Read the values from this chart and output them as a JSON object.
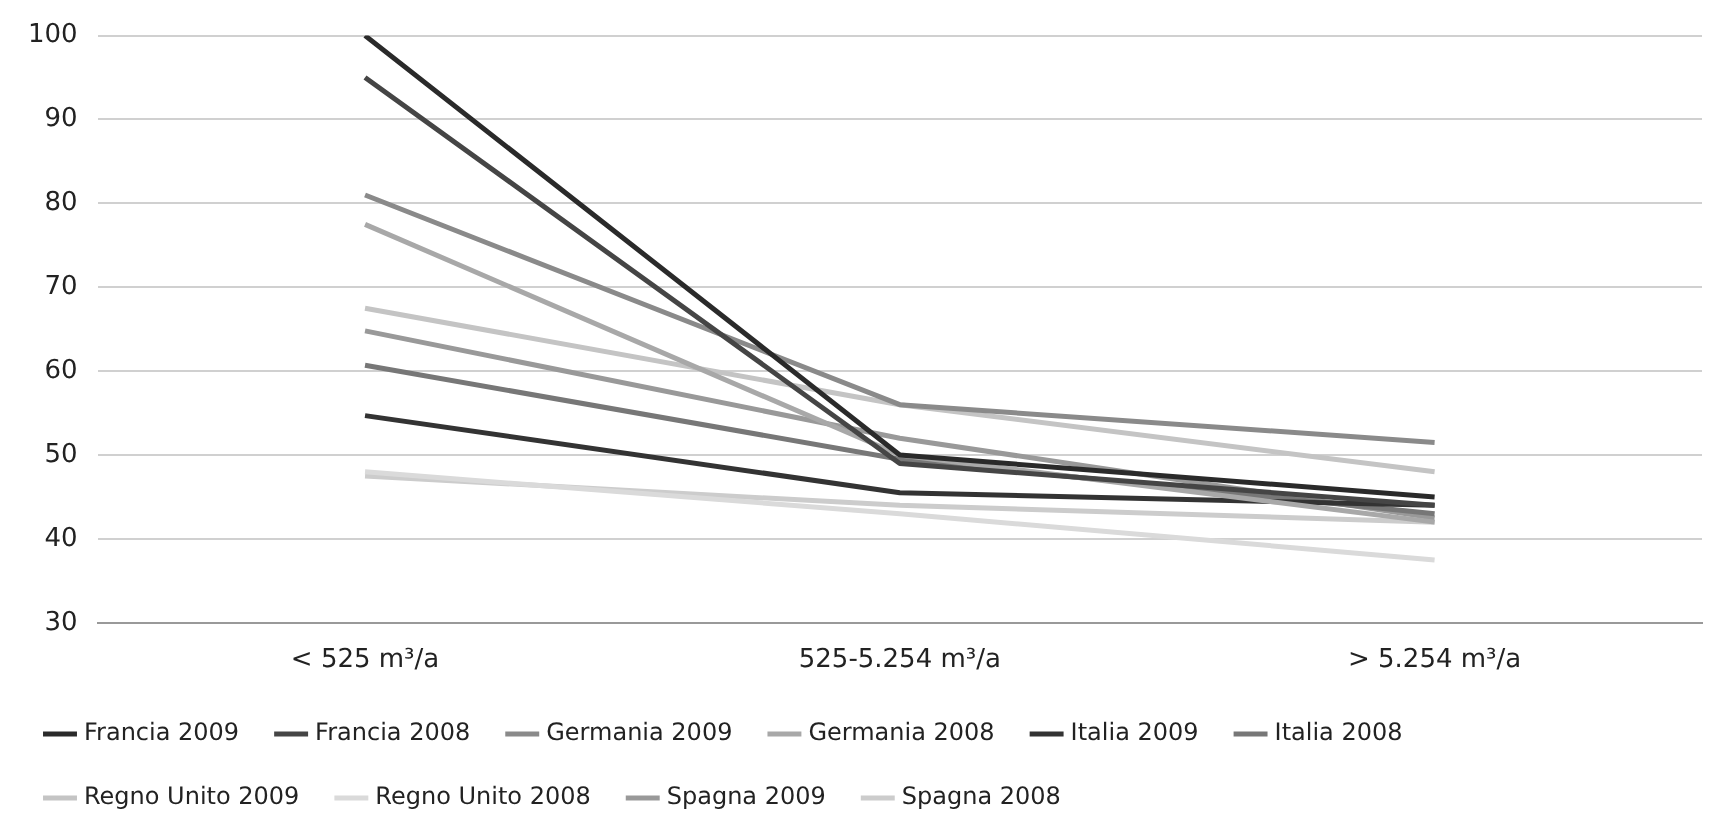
{
  "chart_data": {
    "type": "line",
    "categories": [
      "< 525 m³/a",
      "525-5.254 m³/a",
      "> 5.254 m³/a"
    ],
    "series": [
      {
        "name": "Francia 2009",
        "color": "#2a2a2a",
        "values": [
          100,
          50,
          45
        ]
      },
      {
        "name": "Francia 2008",
        "color": "#454545",
        "values": [
          95,
          49,
          44
        ]
      },
      {
        "name": "Germania 2009",
        "color": "#8a8a8a",
        "values": [
          81,
          56,
          51.5
        ]
      },
      {
        "name": "Germania 2008",
        "color": "#a8a8a8",
        "values": [
          77.5,
          50,
          42
        ]
      },
      {
        "name": "Italia 2009",
        "color": "#333333",
        "values": [
          54.7,
          45.5,
          44
        ]
      },
      {
        "name": "Italia 2008",
        "color": "#777777",
        "values": [
          60.7,
          49.5,
          43
        ]
      },
      {
        "name": "Regno Unito 2009",
        "color": "#c4c4c4",
        "values": [
          67.5,
          56,
          48
        ]
      },
      {
        "name": "Regno Unito 2008",
        "color": "#dadada",
        "values": [
          48,
          43,
          37.5
        ]
      },
      {
        "name": "Spagna 2009",
        "color": "#999999",
        "values": [
          64.8,
          52,
          42.5
        ]
      },
      {
        "name": "Spagna 2008",
        "color": "#cccccc",
        "values": [
          47.5,
          44,
          42
        ]
      }
    ],
    "ylim": [
      30,
      100
    ],
    "yticks": [
      30,
      40,
      50,
      60,
      70,
      80,
      90,
      100
    ],
    "grid": "y",
    "legend": "bottom",
    "marker": "none",
    "line_style": "solid"
  }
}
